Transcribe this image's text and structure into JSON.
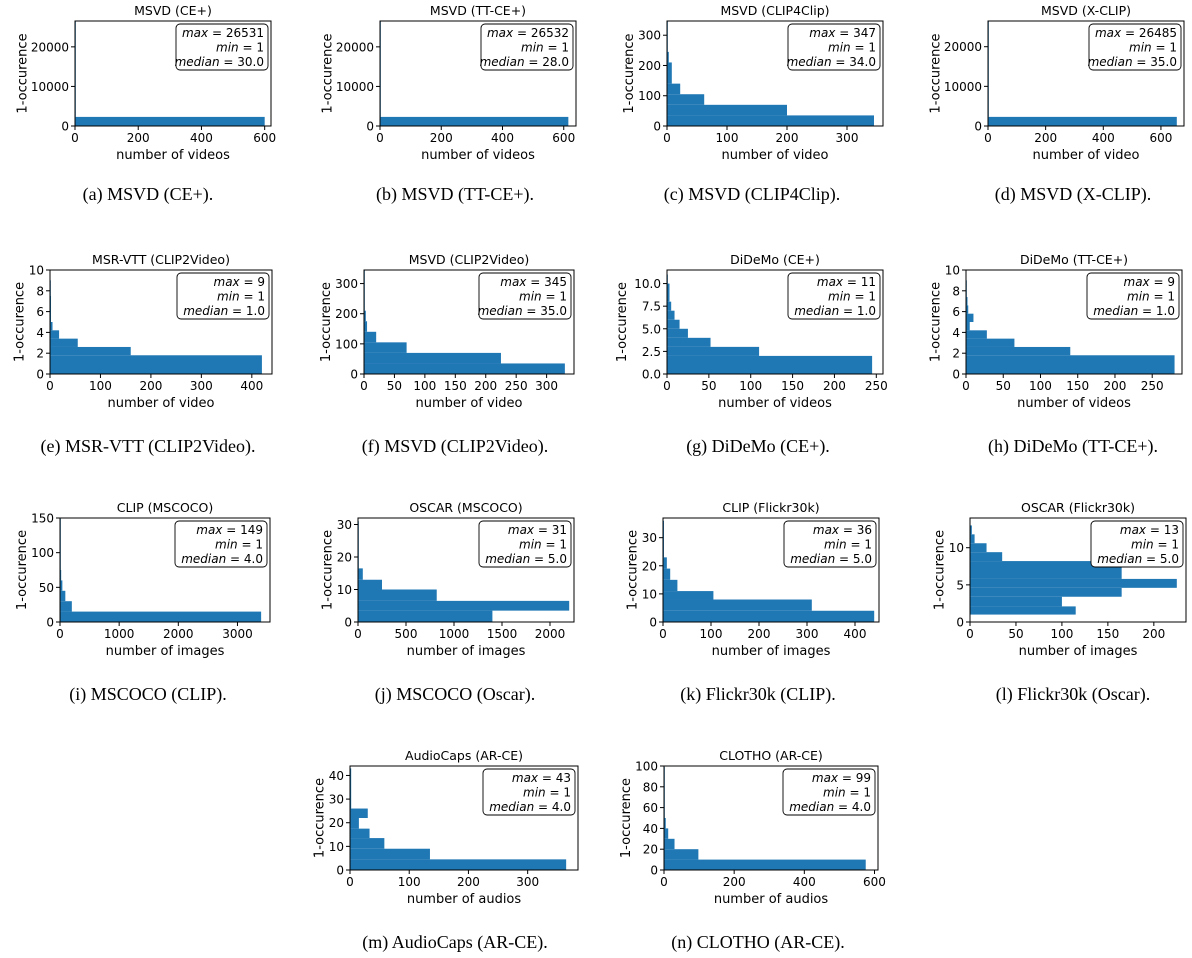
{
  "figure": {
    "bar_color": "#1f77b4"
  },
  "panels": [
    {
      "caption": "(a) MSVD (CE+).",
      "chart_data": {
        "type": "bar",
        "orientation": "horizontal",
        "title": "MSVD (CE+)",
        "xlabel": "number of videos",
        "ylabel": "1-occurence",
        "xlim": [
          0,
          620
        ],
        "ylim": [
          0,
          26531
        ],
        "xticks": [
          0,
          200,
          400,
          600
        ],
        "yticks": [
          0,
          10000,
          20000
        ],
        "bars": [
          {
            "y0": 0,
            "y1": 2300,
            "x": 600
          },
          {
            "y0": 2300,
            "y1": 26531,
            "x": 1
          }
        ],
        "stats": {
          "max": 26531,
          "min": 1,
          "median": "30.0"
        }
      }
    },
    {
      "caption": "(b) MSVD (TT-CE+).",
      "chart_data": {
        "type": "bar",
        "orientation": "horizontal",
        "title": "MSVD (TT-CE+)",
        "xlabel": "number of videos",
        "ylabel": "1-occurence",
        "xlim": [
          0,
          640
        ],
        "ylim": [
          0,
          26532
        ],
        "xticks": [
          0,
          200,
          400,
          600
        ],
        "yticks": [
          0,
          10000,
          20000
        ],
        "bars": [
          {
            "y0": 0,
            "y1": 2300,
            "x": 615
          },
          {
            "y0": 2300,
            "y1": 26532,
            "x": 1
          }
        ],
        "stats": {
          "max": 26532,
          "min": 1,
          "median": "28.0"
        }
      }
    },
    {
      "caption": "(c) MSVD (CLIP4Clip).",
      "chart_data": {
        "type": "bar",
        "orientation": "horizontal",
        "title": "MSVD (CLIP4Clip)",
        "xlabel": "number of video",
        "ylabel": "1-occurence",
        "xlim": [
          0,
          360
        ],
        "ylim": [
          0,
          347
        ],
        "xticks": [
          0,
          100,
          200,
          300
        ],
        "yticks": [
          0,
          100,
          200,
          300
        ],
        "bars": [
          {
            "y0": 0,
            "y1": 35,
            "x": 345
          },
          {
            "y0": 35,
            "y1": 70,
            "x": 200
          },
          {
            "y0": 70,
            "y1": 105,
            "x": 62
          },
          {
            "y0": 105,
            "y1": 140,
            "x": 22
          },
          {
            "y0": 140,
            "y1": 210,
            "x": 8
          },
          {
            "y0": 210,
            "y1": 245,
            "x": 3
          },
          {
            "y0": 245,
            "y1": 347,
            "x": 1
          }
        ],
        "stats": {
          "max": 347,
          "min": 1,
          "median": "34.0"
        }
      }
    },
    {
      "caption": "(d) MSVD (X-CLIP).",
      "chart_data": {
        "type": "bar",
        "orientation": "horizontal",
        "title": "MSVD (X-CLIP)",
        "xlabel": "number of video",
        "ylabel": "1-occurence",
        "xlim": [
          0,
          680
        ],
        "ylim": [
          0,
          26485
        ],
        "xticks": [
          0,
          200,
          400,
          600
        ],
        "yticks": [
          0,
          10000,
          20000
        ],
        "bars": [
          {
            "y0": 0,
            "y1": 2300,
            "x": 655
          },
          {
            "y0": 2300,
            "y1": 26485,
            "x": 1
          }
        ],
        "stats": {
          "max": 26485,
          "min": 1,
          "median": "35.0"
        }
      }
    },
    {
      "caption": "(e) MSR-VTT (CLIP2Video).",
      "chart_data": {
        "type": "bar",
        "orientation": "horizontal",
        "title": "MSR-VTT (CLIP2Video)",
        "xlabel": "number of video",
        "ylabel": "1-occurence",
        "xlim": [
          0,
          440
        ],
        "ylim": [
          0,
          10
        ],
        "xticks": [
          0,
          100,
          200,
          300,
          400
        ],
        "yticks": [
          0,
          2,
          4,
          6,
          8,
          10
        ],
        "bars": [
          {
            "y0": 0,
            "y1": 1.8,
            "x": 420
          },
          {
            "y0": 1.8,
            "y1": 2.6,
            "x": 160
          },
          {
            "y0": 2.6,
            "y1": 3.4,
            "x": 55
          },
          {
            "y0": 3.4,
            "y1": 4.2,
            "x": 18
          },
          {
            "y0": 4.2,
            "y1": 5.0,
            "x": 5
          },
          {
            "y0": 5.0,
            "y1": 7.5,
            "x": 2
          },
          {
            "y0": 7.5,
            "y1": 9,
            "x": 1
          }
        ],
        "stats": {
          "max": 9,
          "min": 1,
          "median": "1.0"
        }
      }
    },
    {
      "caption": "(f) MSVD (CLIP2Video).",
      "chart_data": {
        "type": "bar",
        "orientation": "horizontal",
        "title": "MSVD (CLIP2Video)",
        "xlabel": "number of video",
        "ylabel": "1-occurence",
        "xlim": [
          0,
          345
        ],
        "ylim": [
          0,
          345
        ],
        "xticks": [
          0,
          50,
          100,
          150,
          200,
          250,
          300
        ],
        "yticks": [
          0,
          100,
          200,
          300
        ],
        "bars": [
          {
            "y0": 0,
            "y1": 35,
            "x": 330
          },
          {
            "y0": 35,
            "y1": 70,
            "x": 225
          },
          {
            "y0": 70,
            "y1": 105,
            "x": 70
          },
          {
            "y0": 105,
            "y1": 140,
            "x": 20
          },
          {
            "y0": 140,
            "y1": 175,
            "x": 5
          },
          {
            "y0": 175,
            "y1": 210,
            "x": 3
          },
          {
            "y0": 210,
            "y1": 345,
            "x": 1
          }
        ],
        "stats": {
          "max": 345,
          "min": 1,
          "median": "35.0"
        }
      }
    },
    {
      "caption": "(g) DiDeMo (CE+).",
      "chart_data": {
        "type": "bar",
        "orientation": "horizontal",
        "title": "DiDeMo (CE+)",
        "xlabel": "number of videos",
        "ylabel": "1-occurence",
        "xlim": [
          0,
          258
        ],
        "ylim": [
          0,
          11.5
        ],
        "xticks": [
          0,
          50,
          100,
          150,
          200,
          250
        ],
        "yticks": [
          0.0,
          2.5,
          5.0,
          7.5,
          10.0
        ],
        "bars": [
          {
            "y0": 0,
            "y1": 2.0,
            "x": 245
          },
          {
            "y0": 2.0,
            "y1": 3.0,
            "x": 110
          },
          {
            "y0": 3.0,
            "y1": 4.0,
            "x": 52
          },
          {
            "y0": 4.0,
            "y1": 5.0,
            "x": 25
          },
          {
            "y0": 5.0,
            "y1": 6.0,
            "x": 15
          },
          {
            "y0": 6.0,
            "y1": 7.0,
            "x": 9
          },
          {
            "y0": 7.0,
            "y1": 8.0,
            "x": 5
          },
          {
            "y0": 8.0,
            "y1": 10.0,
            "x": 3
          },
          {
            "y0": 10.0,
            "y1": 11.0,
            "x": 1
          }
        ],
        "stats": {
          "max": 11,
          "min": 1,
          "median": "1.0"
        }
      }
    },
    {
      "caption": "(h) DiDeMo (TT-CE+).",
      "chart_data": {
        "type": "bar",
        "orientation": "horizontal",
        "title": "DiDeMo (TT-CE+)",
        "xlabel": "number of videos",
        "ylabel": "1-occurence",
        "xlim": [
          0,
          290
        ],
        "ylim": [
          0,
          10
        ],
        "xticks": [
          0,
          50,
          100,
          150,
          200,
          250
        ],
        "yticks": [
          0,
          2,
          4,
          6,
          8,
          10
        ],
        "bars": [
          {
            "y0": 0,
            "y1": 1.8,
            "x": 280
          },
          {
            "y0": 1.8,
            "y1": 2.6,
            "x": 140
          },
          {
            "y0": 2.6,
            "y1": 3.4,
            "x": 65
          },
          {
            "y0": 3.4,
            "y1": 4.2,
            "x": 28
          },
          {
            "y0": 4.2,
            "y1": 5.0,
            "x": 5
          },
          {
            "y0": 5.0,
            "y1": 5.8,
            "x": 10
          },
          {
            "y0": 5.8,
            "y1": 6.6,
            "x": 3
          },
          {
            "y0": 6.6,
            "y1": 7.4,
            "x": 2
          },
          {
            "y0": 7.4,
            "y1": 9,
            "x": 1
          }
        ],
        "stats": {
          "max": 9,
          "min": 1,
          "median": "1.0"
        }
      }
    },
    {
      "caption": "(i) MSCOCO (CLIP).",
      "chart_data": {
        "type": "bar",
        "orientation": "horizontal",
        "title": "CLIP (MSCOCO)",
        "xlabel": "number of images",
        "ylabel": "1-occurence",
        "xlim": [
          0,
          3550
        ],
        "ylim": [
          0,
          150
        ],
        "xticks": [
          0,
          1000,
          2000,
          3000
        ],
        "yticks": [
          0,
          50,
          100,
          150
        ],
        "bars": [
          {
            "y0": 0,
            "y1": 15,
            "x": 3400
          },
          {
            "y0": 15,
            "y1": 30,
            "x": 200
          },
          {
            "y0": 30,
            "y1": 45,
            "x": 90
          },
          {
            "y0": 45,
            "y1": 60,
            "x": 40
          },
          {
            "y0": 60,
            "y1": 75,
            "x": 20
          },
          {
            "y0": 75,
            "y1": 149,
            "x": 3
          }
        ],
        "stats": {
          "max": 149,
          "min": 1,
          "median": "4.0"
        }
      }
    },
    {
      "caption": "(j) MSCOCO (Oscar).",
      "chart_data": {
        "type": "bar",
        "orientation": "horizontal",
        "title": "OSCAR (MSCOCO)",
        "xlabel": "number of images",
        "ylabel": "1-occurence",
        "xlim": [
          0,
          2250
        ],
        "ylim": [
          0,
          32
        ],
        "xticks": [
          0,
          500,
          1000,
          1500,
          2000
        ],
        "yticks": [
          0,
          10,
          20,
          30
        ],
        "bars": [
          {
            "y0": 0,
            "y1": 3.5,
            "x": 1400
          },
          {
            "y0": 3.5,
            "y1": 6.5,
            "x": 2200
          },
          {
            "y0": 6.5,
            "y1": 10,
            "x": 820
          },
          {
            "y0": 10,
            "y1": 13,
            "x": 250
          },
          {
            "y0": 13,
            "y1": 16.5,
            "x": 50
          },
          {
            "y0": 16.5,
            "y1": 31,
            "x": 1
          }
        ],
        "stats": {
          "max": 31,
          "min": 1,
          "median": "5.0"
        }
      }
    },
    {
      "caption": "(k) Flickr30k (CLIP).",
      "chart_data": {
        "type": "bar",
        "orientation": "horizontal",
        "title": "CLIP (Flickr30k)",
        "xlabel": "number of images",
        "ylabel": "1-occurence",
        "xlim": [
          0,
          450
        ],
        "ylim": [
          0,
          37
        ],
        "xticks": [
          0,
          100,
          200,
          300,
          400
        ],
        "yticks": [
          0,
          10,
          20,
          30
        ],
        "bars": [
          {
            "y0": 0,
            "y1": 4,
            "x": 440
          },
          {
            "y0": 4,
            "y1": 8,
            "x": 310
          },
          {
            "y0": 8,
            "y1": 11,
            "x": 105
          },
          {
            "y0": 11,
            "y1": 15,
            "x": 30
          },
          {
            "y0": 15,
            "y1": 19,
            "x": 15
          },
          {
            "y0": 19,
            "y1": 23,
            "x": 8
          },
          {
            "y0": 23,
            "y1": 36,
            "x": 2
          }
        ],
        "stats": {
          "max": 36,
          "min": 1,
          "median": "5.0"
        }
      }
    },
    {
      "caption": "(l) Flickr30k (Oscar).",
      "chart_data": {
        "type": "bar",
        "orientation": "horizontal",
        "title": "OSCAR (Flickr30k)",
        "xlabel": "number of images",
        "ylabel": "1-occurence",
        "xlim": [
          0,
          235
        ],
        "ylim": [
          0,
          14
        ],
        "xticks": [
          0,
          50,
          100,
          150,
          200
        ],
        "yticks": [
          0,
          5,
          10
        ],
        "bars": [
          {
            "y0": 1,
            "y1": 2.1,
            "x": 115
          },
          {
            "y0": 2.1,
            "y1": 3.4,
            "x": 100
          },
          {
            "y0": 3.4,
            "y1": 4.6,
            "x": 165
          },
          {
            "y0": 4.6,
            "y1": 5.8,
            "x": 225
          },
          {
            "y0": 5.8,
            "y1": 8.2,
            "x": 165
          },
          {
            "y0": 8.2,
            "y1": 9.4,
            "x": 35
          },
          {
            "y0": 9.4,
            "y1": 10.6,
            "x": 18
          },
          {
            "y0": 10.6,
            "y1": 11.8,
            "x": 5
          },
          {
            "y0": 11.8,
            "y1": 13,
            "x": 2
          }
        ],
        "stats": {
          "max": 13,
          "min": 1,
          "median": "5.0"
        }
      }
    },
    {
      "caption": "(m) AudioCaps (AR-CE).",
      "chart_data": {
        "type": "bar",
        "orientation": "horizontal",
        "title": "AudioCaps (AR-CE)",
        "xlabel": "number of audios",
        "ylabel": "1-occurence",
        "xlim": [
          0,
          385
        ],
        "ylim": [
          0,
          44
        ],
        "xticks": [
          0,
          100,
          200,
          300
        ],
        "yticks": [
          0,
          10,
          20,
          30,
          40
        ],
        "bars": [
          {
            "y0": 0,
            "y1": 4.5,
            "x": 365
          },
          {
            "y0": 4.5,
            "y1": 9,
            "x": 135
          },
          {
            "y0": 9,
            "y1": 13.5,
            "x": 58
          },
          {
            "y0": 13.5,
            "y1": 17.5,
            "x": 33
          },
          {
            "y0": 17.5,
            "y1": 22,
            "x": 15
          },
          {
            "y0": 22,
            "y1": 26,
            "x": 30
          },
          {
            "y0": 26,
            "y1": 43,
            "x": 2
          }
        ],
        "stats": {
          "max": 43,
          "min": 1,
          "median": "4.0"
        }
      }
    },
    {
      "caption": "(n) CLOTHO (AR-CE).",
      "chart_data": {
        "type": "bar",
        "orientation": "horizontal",
        "title": "CLOTHO (AR-CE)",
        "xlabel": "number of audios",
        "ylabel": "1-occurence",
        "xlim": [
          0,
          610
        ],
        "ylim": [
          0,
          100
        ],
        "xticks": [
          0,
          200,
          400,
          600
        ],
        "yticks": [
          0,
          20,
          40,
          60,
          80,
          100
        ],
        "bars": [
          {
            "y0": 0,
            "y1": 10,
            "x": 575
          },
          {
            "y0": 10,
            "y1": 20,
            "x": 98
          },
          {
            "y0": 20,
            "y1": 30,
            "x": 30
          },
          {
            "y0": 30,
            "y1": 40,
            "x": 12
          },
          {
            "y0": 40,
            "y1": 50,
            "x": 5
          },
          {
            "y0": 50,
            "y1": 99,
            "x": 1
          }
        ],
        "stats": {
          "max": 99,
          "min": 1,
          "median": "4.0"
        }
      }
    }
  ]
}
